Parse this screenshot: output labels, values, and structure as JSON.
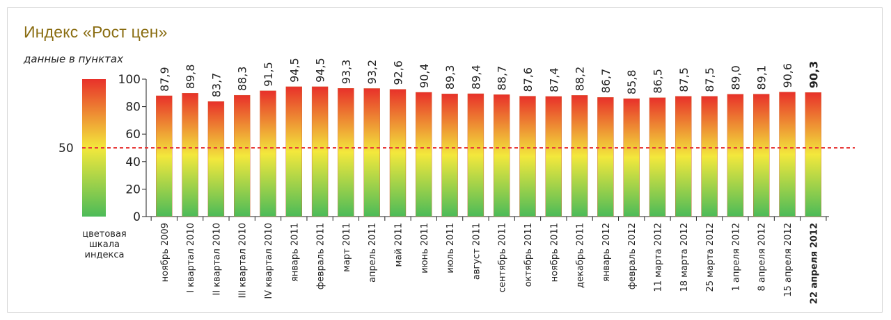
{
  "header": {
    "title": "Индекс «Рост цен»",
    "subtitle": "данные в пунктах"
  },
  "legend": {
    "color_scale_caption": [
      "цветовая",
      "шкала",
      "индекса"
    ],
    "colors": {
      "top": "#e8312a",
      "mid": "#f3e83c",
      "bottom": "#4cbb58"
    }
  },
  "chart_data": {
    "type": "bar",
    "title": "Индекс «Рост цен»",
    "subtitle": "данные в пунктах",
    "xlabel": "",
    "ylabel": "",
    "ylim": [
      0,
      100
    ],
    "yticks": [
      0,
      20,
      40,
      60,
      80,
      100
    ],
    "reference_line": {
      "value": 50,
      "label": "50",
      "color": "#e83a3a",
      "style": "dashed"
    },
    "categories": [
      "ноябрь 2009",
      "I квартал 2010",
      "II квартал 2010",
      "III квартал 2010",
      "IV квартал 2010",
      "январь 2011",
      "февраль 2011",
      "март 2011",
      "апрель 2011",
      "май 2011",
      "июнь 2011",
      "июль 2011",
      "август 2011",
      "сентябрь 2011",
      "октябрь 2011",
      "ноябрь 2011",
      "декабрь 2011",
      "январь 2012",
      "февраль 2012",
      "11 марта 2012",
      "18 марта 2012",
      "25 марта 2012",
      "1 апреля 2012",
      "8 апреля 2012",
      "15 апреля 2012",
      "22 апреля 2012"
    ],
    "values": [
      87.9,
      89.8,
      83.7,
      88.3,
      91.5,
      94.5,
      94.5,
      93.3,
      93.2,
      92.6,
      90.4,
      89.3,
      89.4,
      88.7,
      87.6,
      87.4,
      88.2,
      86.7,
      85.8,
      86.5,
      87.5,
      87.5,
      89.0,
      89.1,
      90.6,
      90.3
    ],
    "value_labels": [
      "87,9",
      "89,8",
      "83,7",
      "88,3",
      "91,5",
      "94,5",
      "94,5",
      "93,3",
      "93,2",
      "92,6",
      "90,4",
      "89,3",
      "89,4",
      "88,7",
      "87,6",
      "87,4",
      "88,2",
      "86,7",
      "85,8",
      "86,5",
      "87,5",
      "87,5",
      "89,0",
      "89,1",
      "90,6",
      "90,3"
    ],
    "highlighted_category": "22 апреля 2012",
    "grid": false,
    "legend": "color scale on the left"
  }
}
